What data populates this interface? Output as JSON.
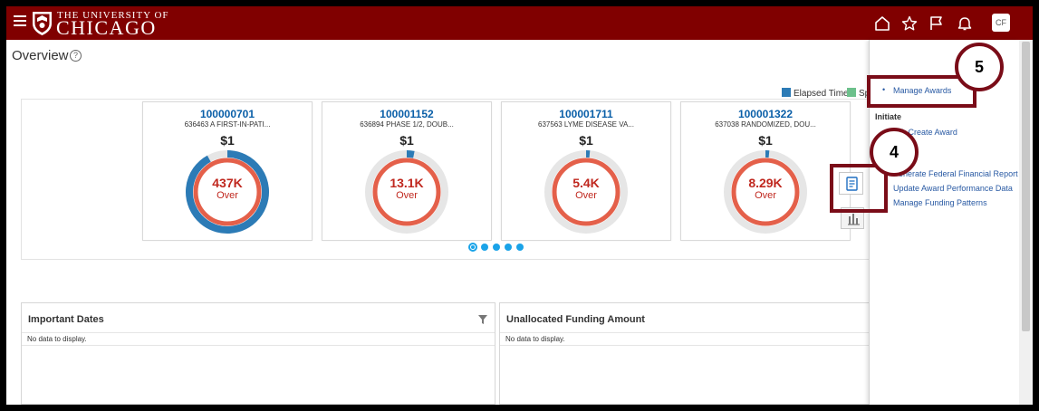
{
  "header": {
    "brand_top": "THE UNIVERSITY OF",
    "brand_main": "CHICAGO",
    "user_initials": "CF",
    "icons": [
      "menu-icon",
      "home-icon",
      "star-icon",
      "flag-icon",
      "bell-icon"
    ]
  },
  "page": {
    "title": "Overview",
    "help_glyph": "?"
  },
  "legend": [
    {
      "label": "Elapsed Time",
      "color": "#2c7bb6"
    },
    {
      "label": "Sp",
      "color": "#6cc08b"
    }
  ],
  "cards": [
    {
      "id": "100000701",
      "desc": "636463 A FIRST-IN-PATI...",
      "amount": "$1",
      "value": "437K",
      "status": "Over",
      "elapsed_fraction": 0.92
    },
    {
      "id": "100001152",
      "desc": "636894 PHASE 1/2, DOUB...",
      "amount": "$1",
      "value": "13.1K",
      "status": "Over",
      "elapsed_fraction": 0.03
    },
    {
      "id": "100001711",
      "desc": "637563 LYME DISEASE VA...",
      "amount": "$1",
      "value": "5.4K",
      "status": "Over",
      "elapsed_fraction": 0.015
    },
    {
      "id": "100001322",
      "desc": "637038 RANDOMIZED, DOU...",
      "amount": "$1",
      "value": "8.29K",
      "status": "Over",
      "elapsed_fraction": 0.015
    }
  ],
  "pagination": {
    "count": 5,
    "active": 1
  },
  "sidebar": {
    "manage_awards": "Manage Awards",
    "initiate_heading": "Initiate",
    "quick_create": "ick Create Award",
    "federal_report": "enerate Federal Financial Report",
    "update_performance": "Update Award Performance Data",
    "funding_patterns": "Manage Funding Patterns"
  },
  "callouts": {
    "step4": "4",
    "step5": "5"
  },
  "panels": [
    {
      "title": "Important Dates",
      "empty": "No data to display."
    },
    {
      "title": "Unallocated Funding Amount",
      "empty": "No data to display."
    }
  ],
  "colors": {
    "brand": "#800000",
    "elapsed": "#2c7bb6",
    "over": "#e4604a",
    "track": "#e6e6e6",
    "link": "#2859a3",
    "callout": "#7a0c18"
  }
}
